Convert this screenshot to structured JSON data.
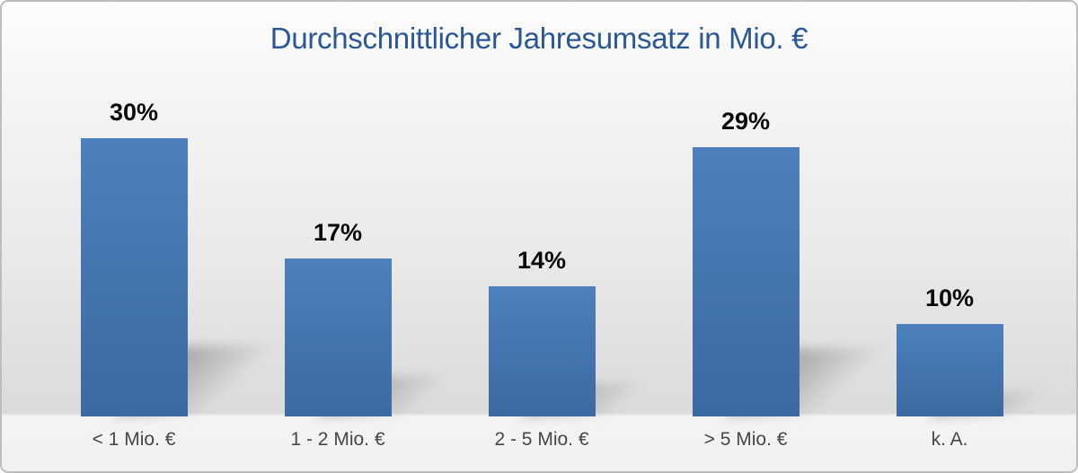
{
  "chart_data": {
    "type": "bar",
    "title": "Durchschnittlicher Jahresumsatz in Mio. €",
    "categories": [
      "< 1 Mio. €",
      "1 - 2 Mio. €",
      "2 - 5 Mio. €",
      "> 5 Mio. €",
      "k. A."
    ],
    "values": [
      30,
      17,
      14,
      29,
      10
    ],
    "value_labels": [
      "30%",
      "17%",
      "14%",
      "29%",
      "10%"
    ],
    "unit": "percent",
    "xlabel": "",
    "ylabel": "",
    "ylim": [
      0,
      33
    ],
    "grid": false,
    "legend": false,
    "axes_visible": false,
    "colors": {
      "bar_top": "#4d80bc",
      "bar_bottom": "#3c69a1",
      "title": "#2a5795",
      "value_label": "#0a0a0a",
      "category_label": "#474747",
      "border": "#bdbdbd",
      "background_top": "#fdfdfd",
      "background_bottom": "#dbdbdb",
      "footer_strip": "#f2f2f4"
    }
  }
}
